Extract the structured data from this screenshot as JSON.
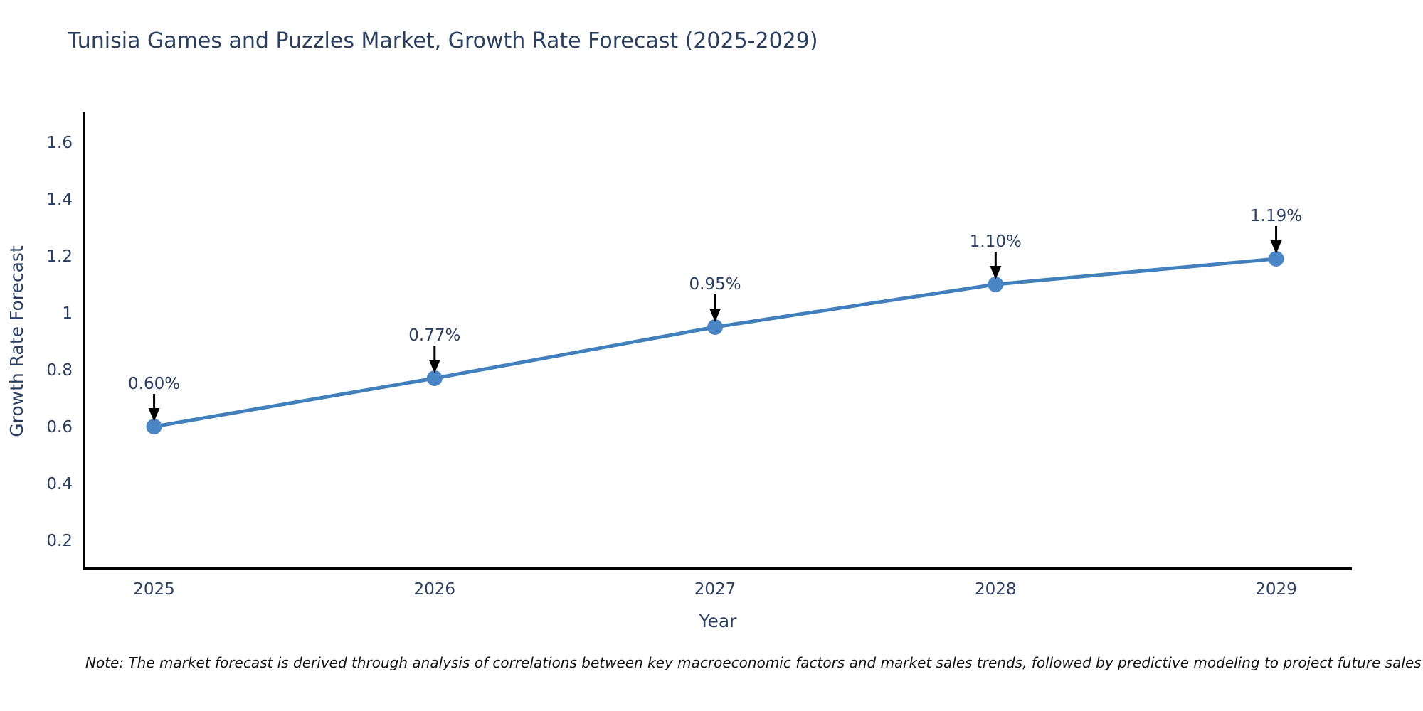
{
  "title": {
    "text": "Tunisia Games and Puzzles Market, Growth Rate Forecast (2025-2029)",
    "color": "#2a3f5f"
  },
  "note": {
    "text": "Note: The market forecast is derived through analysis of correlations between key macroeconomic factors and market sales trends, followed by predictive modeling to project future sales"
  },
  "chart_data": {
    "type": "line",
    "title": "Tunisia Games and Puzzles Market, Growth Rate Forecast (2025-2029)",
    "xlabel": "Year",
    "ylabel": "Growth Rate Forecast",
    "x": [
      2025,
      2026,
      2027,
      2028,
      2029
    ],
    "y": [
      0.6,
      0.77,
      0.95,
      1.1,
      1.19
    ],
    "point_labels": [
      "0.60%",
      "0.77%",
      "0.95%",
      "1.10%",
      "1.19%"
    ],
    "xtick_labels": [
      "2025",
      "2026",
      "2027",
      "2028",
      "2029"
    ],
    "ytick_labels": [
      "0.2",
      "0.4",
      "0.6",
      "0.8",
      "1",
      "1.2",
      "1.4",
      "1.6"
    ],
    "ytick_values": [
      0.2,
      0.4,
      0.6,
      0.8,
      1.0,
      1.2,
      1.4,
      1.6
    ],
    "xlim": [
      2024.75,
      2029.27
    ],
    "ylim": [
      0.1,
      1.7
    ],
    "grid": false,
    "legend": null,
    "colors": {
      "line": "#4180bc",
      "marker": "#4a86c5",
      "annotation_arrow": "#000000",
      "annotation_text": "#2a3f5f",
      "axis": "#000000",
      "tick_text": "#2a3f5f",
      "axis_title_text": "#2a3f5f"
    }
  }
}
